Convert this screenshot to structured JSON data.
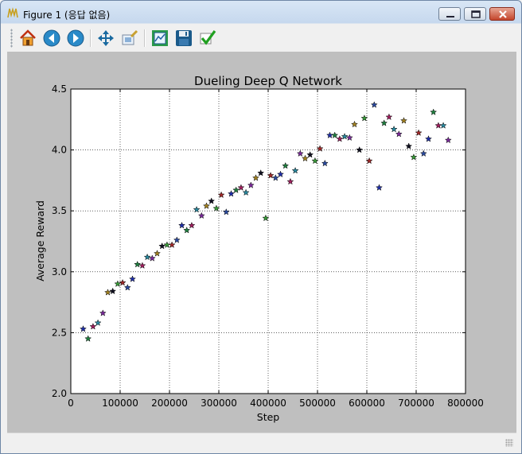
{
  "window": {
    "title": "Figure 1 (응답 없음)",
    "buttons": [
      "minimize",
      "maximize",
      "close"
    ]
  },
  "toolbar": {
    "items": [
      {
        "name": "home",
        "icon": "home-icon"
      },
      {
        "name": "back",
        "icon": "back-arrow-icon"
      },
      {
        "name": "forward",
        "icon": "forward-arrow-icon"
      },
      {
        "name": "pan",
        "icon": "move-icon"
      },
      {
        "name": "zoom",
        "icon": "zoom-rect-icon"
      },
      {
        "name": "subplots",
        "icon": "subplots-icon"
      },
      {
        "name": "save",
        "icon": "floppy-disk-icon"
      },
      {
        "name": "edit",
        "icon": "checkmark-icon"
      }
    ]
  },
  "chart_data": {
    "type": "scatter",
    "title": "Dueling Deep Q Network",
    "xlabel": "Step",
    "ylabel": "Average Reward",
    "xlim": [
      0,
      800000
    ],
    "ylim": [
      2.0,
      4.5
    ],
    "xticks": [
      "0",
      "100000",
      "200000",
      "300000",
      "400000",
      "500000",
      "600000",
      "700000",
      "800000"
    ],
    "yticks": [
      "2.0",
      "2.5",
      "3.0",
      "3.5",
      "4.0",
      "4.5"
    ],
    "grid": true,
    "marker": "star",
    "points": [
      [
        25000,
        2.53
      ],
      [
        35000,
        2.45
      ],
      [
        45000,
        2.55
      ],
      [
        55000,
        2.58
      ],
      [
        65000,
        2.66
      ],
      [
        75000,
        2.83
      ],
      [
        85000,
        2.84
      ],
      [
        95000,
        2.9
      ],
      [
        105000,
        2.91
      ],
      [
        115000,
        2.87
      ],
      [
        125000,
        2.94
      ],
      [
        135000,
        3.06
      ],
      [
        145000,
        3.05
      ],
      [
        155000,
        3.12
      ],
      [
        165000,
        3.11
      ],
      [
        175000,
        3.15
      ],
      [
        185000,
        3.21
      ],
      [
        195000,
        3.22
      ],
      [
        205000,
        3.22
      ],
      [
        215000,
        3.26
      ],
      [
        225000,
        3.38
      ],
      [
        235000,
        3.34
      ],
      [
        245000,
        3.38
      ],
      [
        255000,
        3.51
      ],
      [
        265000,
        3.46
      ],
      [
        275000,
        3.54
      ],
      [
        285000,
        3.58
      ],
      [
        295000,
        3.52
      ],
      [
        305000,
        3.63
      ],
      [
        315000,
        3.49
      ],
      [
        325000,
        3.64
      ],
      [
        335000,
        3.67
      ],
      [
        345000,
        3.69
      ],
      [
        355000,
        3.65
      ],
      [
        365000,
        3.71
      ],
      [
        375000,
        3.77
      ],
      [
        385000,
        3.81
      ],
      [
        395000,
        3.44
      ],
      [
        405000,
        3.79
      ],
      [
        415000,
        3.77
      ],
      [
        425000,
        3.8
      ],
      [
        435000,
        3.87
      ],
      [
        445000,
        3.74
      ],
      [
        455000,
        3.83
      ],
      [
        465000,
        3.97
      ],
      [
        475000,
        3.93
      ],
      [
        485000,
        3.96
      ],
      [
        495000,
        3.91
      ],
      [
        505000,
        4.01
      ],
      [
        515000,
        3.89
      ],
      [
        525000,
        4.12
      ],
      [
        535000,
        4.12
      ],
      [
        545000,
        4.09
      ],
      [
        555000,
        4.11
      ],
      [
        565000,
        4.1
      ],
      [
        575000,
        4.21
      ],
      [
        585000,
        4.0
      ],
      [
        595000,
        4.26
      ],
      [
        605000,
        3.91
      ],
      [
        615000,
        4.37
      ],
      [
        625000,
        3.69
      ],
      [
        635000,
        4.22
      ],
      [
        645000,
        4.27
      ],
      [
        655000,
        4.17
      ],
      [
        665000,
        4.13
      ],
      [
        675000,
        4.24
      ],
      [
        685000,
        4.03
      ],
      [
        695000,
        3.94
      ],
      [
        705000,
        4.14
      ],
      [
        715000,
        3.97
      ],
      [
        725000,
        4.09
      ],
      [
        735000,
        4.31
      ],
      [
        745000,
        4.2
      ],
      [
        755000,
        4.2
      ],
      [
        765000,
        4.08
      ]
    ],
    "colors": [
      "#1f2fa8",
      "#1f7f3f",
      "#a0205f",
      "#2a8aa0",
      "#7a2a9a",
      "#a08020",
      "#101020",
      "#3a9a3a",
      "#a02a2a",
      "#2a4aa0"
    ]
  }
}
